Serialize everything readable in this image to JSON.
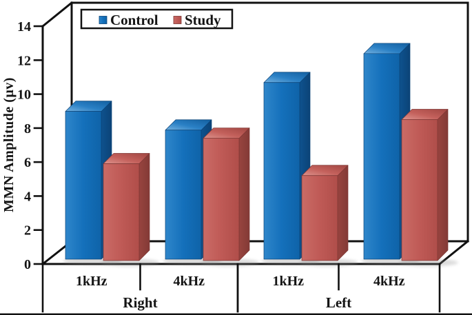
{
  "chart": {
    "background": "#ffffff",
    "legend": {
      "items": [
        {
          "label": "Control",
          "color": "#1470BB"
        },
        {
          "label": "Study",
          "color": "#BF5A56"
        }
      ]
    },
    "y_axis": {
      "title": "MMN Amplitude (μv)",
      "ticks": [
        "0",
        "2",
        "4",
        "6",
        "8",
        "10",
        "12",
        "14"
      ]
    },
    "x_axis": {
      "groups": [
        {
          "label": "Right",
          "categories": [
            "1kHz",
            "4kHz"
          ]
        },
        {
          "label": "Left",
          "categories": [
            "1kHz",
            "4kHz"
          ]
        }
      ]
    }
  },
  "chart_data": {
    "type": "bar",
    "projection": "3d-column",
    "title": "",
    "xlabel": "",
    "ylabel": "MMN Amplitude (μv)",
    "ylim": [
      0,
      14
    ],
    "y_tick_step": 2,
    "grid": false,
    "legend_position": "top-left",
    "group_labels": [
      "Right",
      "Left"
    ],
    "categories": [
      "Right 1kHz",
      "Right 4kHz",
      "Left 1kHz",
      "Left 4kHz"
    ],
    "series": [
      {
        "name": "Control",
        "color": "#1470BB",
        "values": [
          8.7,
          7.6,
          10.4,
          12.1
        ]
      },
      {
        "name": "Study",
        "color": "#BF5A56",
        "values": [
          5.7,
          7.2,
          5.0,
          8.3
        ]
      }
    ],
    "colors": {
      "control_front": "#1470BB",
      "control_top": "#3E8FCE",
      "control_side": "#0D4E89",
      "study_front": "#BF5A56",
      "study_top": "#CD7670",
      "study_side": "#93413D",
      "frame": "#111111",
      "text": "#141414"
    }
  }
}
